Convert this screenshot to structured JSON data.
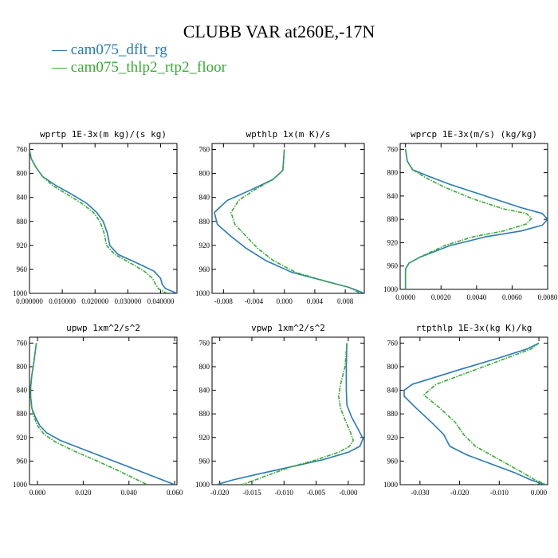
{
  "figure": {
    "title": "CLUBB VAR at260E,-17N",
    "legend": [
      {
        "label": "cam075_dflt_rg",
        "color": "#2a7ab8"
      },
      {
        "label": "cam075_thlp2_rtp2_floor",
        "color": "#3aaa35"
      }
    ]
  },
  "chart_data": [
    {
      "type": "line",
      "title": "wprtp  1E-3x(m kg)/(s kg)",
      "xlim": [
        0.0,
        0.045
      ],
      "ylim": [
        1000,
        750
      ],
      "xticks": [
        0.0,
        0.01,
        0.02,
        0.03,
        0.04
      ],
      "xtick_labels": [
        "0.000000",
        "0.010000",
        "0.020000",
        "0.030000",
        "0.040000"
      ],
      "yticks": [
        760,
        800,
        840,
        880,
        920,
        960,
        1000
      ],
      "series": [
        {
          "name": "cam075_dflt_rg",
          "style": "solid",
          "color": "#2a7ab8",
          "points": [
            [
              0.0,
              760
            ],
            [
              0.0005,
              775
            ],
            [
              0.002,
              790
            ],
            [
              0.004,
              805
            ],
            [
              0.008,
              820
            ],
            [
              0.013,
              835
            ],
            [
              0.0175,
              850
            ],
            [
              0.0205,
              865
            ],
            [
              0.0225,
              880
            ],
            [
              0.0238,
              900
            ],
            [
              0.0245,
              920
            ],
            [
              0.027,
              935
            ],
            [
              0.033,
              950
            ],
            [
              0.038,
              963
            ],
            [
              0.04,
              975
            ],
            [
              0.0405,
              985
            ],
            [
              0.0415,
              992
            ],
            [
              0.045,
              1000
            ]
          ]
        },
        {
          "name": "cam075_thlp2_rtp2_floor",
          "style": "dashed",
          "color": "#3aaa35",
          "points": [
            [
              0.0,
              760
            ],
            [
              0.0005,
              775
            ],
            [
              0.002,
              790
            ],
            [
              0.004,
              805
            ],
            [
              0.007,
              820
            ],
            [
              0.0115,
              835
            ],
            [
              0.016,
              850
            ],
            [
              0.0195,
              865
            ],
            [
              0.0215,
              880
            ],
            [
              0.0228,
              900
            ],
            [
              0.0235,
              920
            ],
            [
              0.026,
              935
            ],
            [
              0.031,
              950
            ],
            [
              0.035,
              963
            ],
            [
              0.0375,
              975
            ],
            [
              0.0385,
              985
            ],
            [
              0.0395,
              993
            ],
            [
              0.042,
              1000
            ]
          ]
        }
      ]
    },
    {
      "type": "line",
      "title": "wpthlp  1x(m K)/s",
      "xlim": [
        -0.0095,
        0.0105
      ],
      "ylim": [
        1000,
        750
      ],
      "xticks": [
        -0.008,
        -0.004,
        0.0,
        0.004,
        0.008
      ],
      "xtick_labels": [
        "-0.008",
        "-0.004",
        "0.000",
        "0.004",
        "0.008"
      ],
      "yticks": [
        760,
        800,
        840,
        880,
        920,
        960,
        1000
      ],
      "series": [
        {
          "name": "cam075_dflt_rg",
          "style": "solid",
          "color": "#2a7ab8",
          "points": [
            [
              0.0,
              760
            ],
            [
              -0.0002,
              795
            ],
            [
              -0.0015,
              810
            ],
            [
              -0.0045,
              828
            ],
            [
              -0.0075,
              845
            ],
            [
              -0.0092,
              865
            ],
            [
              -0.0088,
              885
            ],
            [
              -0.007,
              905
            ],
            [
              -0.005,
              925
            ],
            [
              -0.0025,
              945
            ],
            [
              0.001,
              965
            ],
            [
              0.0055,
              980
            ],
            [
              0.0085,
              990
            ],
            [
              0.0105,
              1000
            ]
          ]
        },
        {
          "name": "cam075_thlp2_rtp2_floor",
          "style": "dashed",
          "color": "#3aaa35",
          "points": [
            [
              0.0,
              760
            ],
            [
              -0.0002,
              795
            ],
            [
              -0.0015,
              810
            ],
            [
              -0.004,
              828
            ],
            [
              -0.006,
              845
            ],
            [
              -0.007,
              865
            ],
            [
              -0.0065,
              885
            ],
            [
              -0.005,
              905
            ],
            [
              -0.0035,
              925
            ],
            [
              -0.0015,
              945
            ],
            [
              0.0015,
              965
            ],
            [
              0.0055,
              980
            ],
            [
              0.0085,
              990
            ],
            [
              0.01,
              1000
            ]
          ]
        }
      ]
    },
    {
      "type": "line",
      "title": "wprcp  1E-3x(m/s) (kg/kg)",
      "xlim": [
        -0.0003,
        0.008
      ],
      "ylim": [
        1000,
        750
      ],
      "xticks": [
        0.0,
        0.002,
        0.004,
        0.006,
        0.008
      ],
      "xtick_labels": [
        "0.0000",
        "0.0020",
        "0.0040",
        "0.0060",
        "0.0080"
      ],
      "yticks": [
        760,
        800,
        840,
        880,
        920,
        960,
        1000
      ],
      "series": [
        {
          "name": "cam075_dflt_rg",
          "style": "solid",
          "color": "#2a7ab8",
          "points": [
            [
              0.0,
              760
            ],
            [
              0.0001,
              780
            ],
            [
              0.0004,
              795
            ],
            [
              0.0012,
              805
            ],
            [
              0.0025,
              820
            ],
            [
              0.0045,
              840
            ],
            [
              0.0065,
              860
            ],
            [
              0.0077,
              870
            ],
            [
              0.008,
              880
            ],
            [
              0.0077,
              890
            ],
            [
              0.0065,
              900
            ],
            [
              0.0045,
              910
            ],
            [
              0.0025,
              925
            ],
            [
              0.0008,
              945
            ],
            [
              0.0002,
              955
            ],
            [
              0.0,
              965
            ],
            [
              0.0,
              1000
            ]
          ]
        },
        {
          "name": "cam075_thlp2_rtp2_floor",
          "style": "dashed",
          "color": "#3aaa35",
          "points": [
            [
              0.0,
              760
            ],
            [
              0.0001,
              780
            ],
            [
              0.0004,
              795
            ],
            [
              0.0011,
              808
            ],
            [
              0.0022,
              825
            ],
            [
              0.0038,
              845
            ],
            [
              0.0055,
              862
            ],
            [
              0.0068,
              870
            ],
            [
              0.0071,
              878
            ],
            [
              0.0068,
              888
            ],
            [
              0.0055,
              900
            ],
            [
              0.0038,
              910
            ],
            [
              0.0022,
              925
            ],
            [
              0.0008,
              945
            ],
            [
              0.0002,
              955
            ],
            [
              0.0,
              965
            ],
            [
              0.0,
              1000
            ]
          ]
        }
      ]
    },
    {
      "type": "line",
      "title": "upwp  1xm^2/s^2",
      "xlim": [
        -0.0035,
        0.061
      ],
      "ylim": [
        1000,
        750
      ],
      "xticks": [
        0.0,
        0.02,
        0.04,
        0.06
      ],
      "xtick_labels": [
        "0.000",
        "0.020",
        "0.040",
        "0.060"
      ],
      "yticks": [
        760,
        800,
        840,
        880,
        920,
        960,
        1000
      ],
      "series": [
        {
          "name": "cam075_dflt_rg",
          "style": "solid",
          "color": "#2a7ab8",
          "points": [
            [
              -0.0005,
              760
            ],
            [
              -0.0015,
              790
            ],
            [
              -0.0025,
              815
            ],
            [
              -0.003,
              835
            ],
            [
              -0.003,
              850
            ],
            [
              -0.0025,
              870
            ],
            [
              -0.001,
              885
            ],
            [
              0.001,
              900
            ],
            [
              0.004,
              912
            ],
            [
              0.01,
              925
            ],
            [
              0.02,
              940
            ],
            [
              0.03,
              955
            ],
            [
              0.04,
              970
            ],
            [
              0.05,
              985
            ],
            [
              0.06,
              1000
            ]
          ]
        },
        {
          "name": "cam075_thlp2_rtp2_floor",
          "style": "dashed",
          "color": "#3aaa35",
          "points": [
            [
              -0.0005,
              760
            ],
            [
              -0.0015,
              790
            ],
            [
              -0.0025,
              815
            ],
            [
              -0.003,
              835
            ],
            [
              -0.003,
              850
            ],
            [
              -0.0025,
              870
            ],
            [
              -0.0015,
              885
            ],
            [
              0.0,
              900
            ],
            [
              0.003,
              915
            ],
            [
              0.008,
              928
            ],
            [
              0.016,
              943
            ],
            [
              0.025,
              958
            ],
            [
              0.033,
              972
            ],
            [
              0.04,
              985
            ],
            [
              0.048,
              1000
            ]
          ]
        }
      ]
    },
    {
      "type": "line",
      "title": "vpwp  1xm^2/s^2",
      "xlim": [
        -0.0212,
        0.0025
      ],
      "ylim": [
        1000,
        750
      ],
      "xticks": [
        -0.02,
        -0.015,
        -0.01,
        -0.005,
        0.0
      ],
      "xtick_labels": [
        "-0.020",
        "-0.015",
        "-0.010",
        "-0.005",
        "-0.000"
      ],
      "yticks": [
        760,
        800,
        840,
        880,
        920,
        960,
        1000
      ],
      "series": [
        {
          "name": "cam075_dflt_rg",
          "style": "solid",
          "color": "#2a7ab8",
          "points": [
            [
              -0.0002,
              760
            ],
            [
              -0.0003,
              800
            ],
            [
              -0.0003,
              840
            ],
            [
              -0.0002,
              865
            ],
            [
              0.0005,
              885
            ],
            [
              0.0015,
              905
            ],
            [
              0.0023,
              922
            ],
            [
              0.0018,
              935
            ],
            [
              0.0,
              945
            ],
            [
              -0.004,
              958
            ],
            [
              -0.009,
              970
            ],
            [
              -0.014,
              982
            ],
            [
              -0.018,
              992
            ],
            [
              -0.0205,
              1000
            ]
          ]
        },
        {
          "name": "cam075_thlp2_rtp2_floor",
          "style": "dashed",
          "color": "#3aaa35",
          "points": [
            [
              -0.0002,
              760
            ],
            [
              -0.0005,
              800
            ],
            [
              -0.0012,
              830
            ],
            [
              -0.0015,
              850
            ],
            [
              -0.0012,
              870
            ],
            [
              -0.0005,
              890
            ],
            [
              0.0003,
              910
            ],
            [
              0.0008,
              925
            ],
            [
              0.0002,
              935
            ],
            [
              -0.0015,
              945
            ],
            [
              -0.005,
              958
            ],
            [
              -0.009,
              970
            ],
            [
              -0.012,
              982
            ],
            [
              -0.0145,
              992
            ],
            [
              -0.0165,
              1000
            ]
          ]
        }
      ]
    },
    {
      "type": "line",
      "title": "rtpthlp  1E-3x(kg K)/kg",
      "xlim": [
        -0.035,
        0.0022
      ],
      "ylim": [
        1000,
        750
      ],
      "xticks": [
        -0.03,
        -0.02,
        -0.01,
        0.0
      ],
      "xtick_labels": [
        "-0.030",
        "-0.020",
        "-0.010",
        "0.000"
      ],
      "yticks": [
        760,
        800,
        840,
        880,
        920,
        960,
        1000
      ],
      "series": [
        {
          "name": "cam075_dflt_rg",
          "style": "solid",
          "color": "#2a7ab8",
          "points": [
            [
              0.0,
              760
            ],
            [
              -0.003,
              770
            ],
            [
              -0.01,
              785
            ],
            [
              -0.02,
              805
            ],
            [
              -0.032,
              830
            ],
            [
              -0.034,
              840
            ],
            [
              -0.034,
              850
            ],
            [
              -0.031,
              870
            ],
            [
              -0.027,
              895
            ],
            [
              -0.024,
              915
            ],
            [
              -0.0225,
              935
            ],
            [
              -0.018,
              950
            ],
            [
              -0.012,
              965
            ],
            [
              -0.006,
              980
            ],
            [
              -0.002,
              992
            ],
            [
              0.0015,
              1000
            ]
          ]
        },
        {
          "name": "cam075_thlp2_rtp2_floor",
          "style": "dashed",
          "color": "#3aaa35",
          "points": [
            [
              0.0,
              760
            ],
            [
              -0.002,
              770
            ],
            [
              -0.008,
              785
            ],
            [
              -0.016,
              805
            ],
            [
              -0.026,
              830
            ],
            [
              -0.029,
              848
            ],
            [
              -0.025,
              870
            ],
            [
              -0.021,
              895
            ],
            [
              -0.019,
              915
            ],
            [
              -0.016,
              935
            ],
            [
              -0.012,
              950
            ],
            [
              -0.008,
              965
            ],
            [
              -0.004,
              980
            ],
            [
              -0.001,
              992
            ],
            [
              0.002,
              1000
            ]
          ]
        }
      ]
    }
  ]
}
